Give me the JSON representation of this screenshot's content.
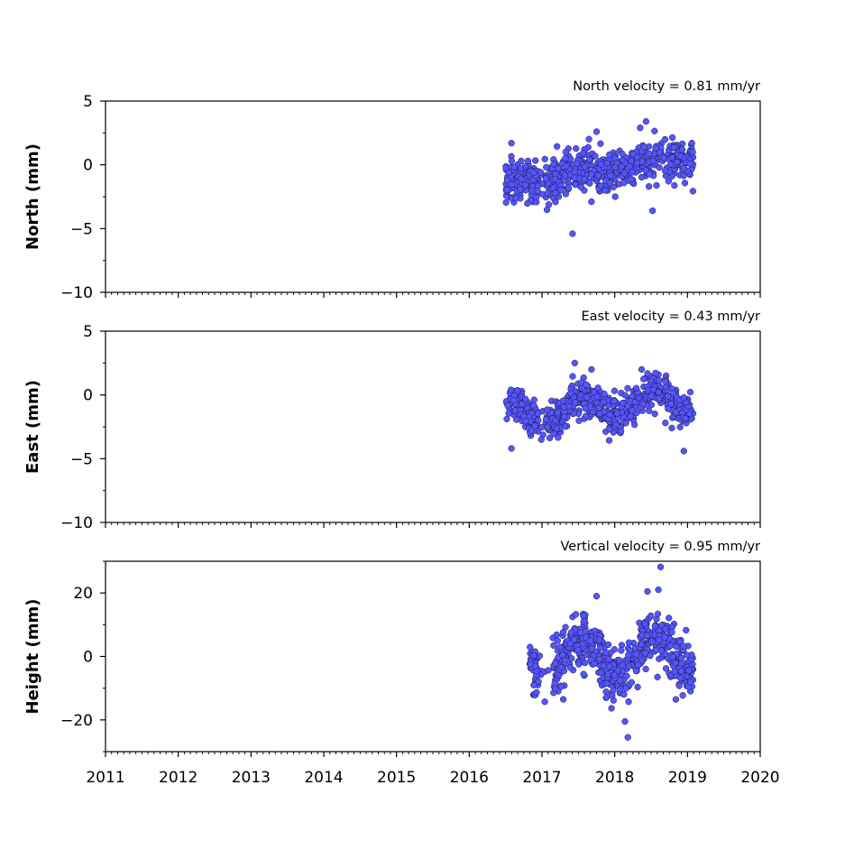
{
  "chart_data": [
    {
      "type": "scatter",
      "title": "North velocity = 0.81 mm/yr",
      "ylabel": "North (mm)",
      "xlim": [
        2011,
        2020
      ],
      "ylim": [
        -10,
        5
      ],
      "yticks": [
        "5",
        "0",
        "−5",
        "−10"
      ],
      "ytick_values": [
        5,
        0,
        -5,
        -10
      ],
      "data_range": [
        2016.5,
        2019.08
      ],
      "data_gap": [
        2016.95,
        2017.05
      ],
      "velocity_mm_per_yr": 0.81,
      "seasonal_amplitude_mm": 0.3,
      "noise_sd_mm": 0.85,
      "mean_at_2018_mm": -0.3,
      "outliers": [
        {
          "x": 2016.58,
          "y": 1.7
        },
        {
          "x": 2017.42,
          "y": -5.4
        },
        {
          "x": 2018.43,
          "y": 3.4
        },
        {
          "x": 2018.52,
          "y": -3.6
        },
        {
          "x": 2017.75,
          "y": 2.6
        },
        {
          "x": 2018.35,
          "y": 2.9
        }
      ],
      "show_xtick_labels": false
    },
    {
      "type": "scatter",
      "title": "East velocity = 0.43 mm/yr",
      "ylabel": "East (mm)",
      "xlim": [
        2011,
        2020
      ],
      "ylim": [
        -10,
        5
      ],
      "yticks": [
        "5",
        "0",
        "−5",
        "−10"
      ],
      "ytick_values": [
        5,
        0,
        -5,
        -10
      ],
      "data_range": [
        2016.5,
        2019.08
      ],
      "data_gap": [
        2016.95,
        2017.05
      ],
      "velocity_mm_per_yr": 0.43,
      "seasonal_amplitude_mm": 0.9,
      "noise_sd_mm": 0.7,
      "mean_at_2018_mm": -0.8,
      "outliers": [
        {
          "x": 2016.58,
          "y": -4.2
        },
        {
          "x": 2018.95,
          "y": -4.4
        },
        {
          "x": 2017.45,
          "y": 2.5
        },
        {
          "x": 2018.37,
          "y": 2.0
        },
        {
          "x": 2017.68,
          "y": 2.0
        }
      ],
      "show_xtick_labels": false
    },
    {
      "type": "scatter",
      "title": "Vertical velocity = 0.95 mm/yr",
      "ylabel": "Height (mm)",
      "xlim": [
        2011,
        2020
      ],
      "ylim": [
        -30,
        30
      ],
      "yticks": [
        "20",
        "0",
        "−20"
      ],
      "ytick_values": [
        20,
        0,
        -20
      ],
      "data_range": [
        2016.83,
        2019.08
      ],
      "data_gap": [
        2016.93,
        2017.15
      ],
      "velocity_mm_per_yr": 0.95,
      "seasonal_amplitude_mm": 6.0,
      "noise_sd_mm": 4.5,
      "mean_at_2018_mm": 0.0,
      "outliers": [
        {
          "x": 2018.63,
          "y": 28.2
        },
        {
          "x": 2018.18,
          "y": -25.5
        },
        {
          "x": 2018.45,
          "y": 20.5
        },
        {
          "x": 2018.6,
          "y": 21.0
        },
        {
          "x": 2017.75,
          "y": 19.0
        },
        {
          "x": 2018.14,
          "y": -20.5
        }
      ],
      "show_xtick_labels": true
    }
  ],
  "xaxis": {
    "ticks": [
      2011,
      2012,
      2013,
      2014,
      2015,
      2016,
      2017,
      2018,
      2019,
      2020
    ],
    "tick_labels": [
      "2011",
      "2012",
      "2013",
      "2014",
      "2015",
      "2016",
      "2017",
      "2018",
      "2019",
      "2020"
    ]
  },
  "colors": {
    "marker_fill": "#5555ff",
    "marker_edge": "#1a1a3a",
    "axes": "#000000",
    "background": "#ffffff"
  }
}
